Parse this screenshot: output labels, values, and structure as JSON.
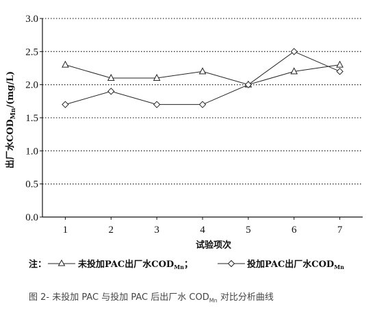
{
  "chart_data": {
    "type": "line",
    "x": [
      1,
      2,
      3,
      4,
      5,
      6,
      7
    ],
    "series": [
      {
        "name": "未投加PAC出厂水COD",
        "name_sub": "Mn",
        "marker": "triangle",
        "values": [
          2.3,
          2.1,
          2.1,
          2.2,
          2.0,
          2.2,
          2.3
        ]
      },
      {
        "name": "投加PAC出厂水COD",
        "name_sub": "Mn",
        "marker": "diamond",
        "values": [
          1.7,
          1.9,
          1.7,
          1.7,
          2.0,
          2.5,
          2.2
        ]
      }
    ],
    "xlabel": "试验项次",
    "ylabel_prefix": "出厂水COD",
    "ylabel_sub": "Mn",
    "ylabel_suffix": "/(mg/L)",
    "ylim": [
      0,
      3.0
    ],
    "yticks": [
      "0.0",
      "0.5",
      "1.0",
      "1.5",
      "2.0",
      "2.5",
      "3.0"
    ],
    "xticks": [
      "1",
      "2",
      "3",
      "4",
      "5",
      "6",
      "7"
    ],
    "grid": "horizontal dotted",
    "note_prefix": "注：",
    "note_sep": "；",
    "legend_placement": "bottom"
  },
  "caption": {
    "prefix": "图 2- 未投加 PAC 与投加 PAC 后出厂水 COD",
    "sub": "Mn",
    "suffix": " 对比分析曲线"
  }
}
